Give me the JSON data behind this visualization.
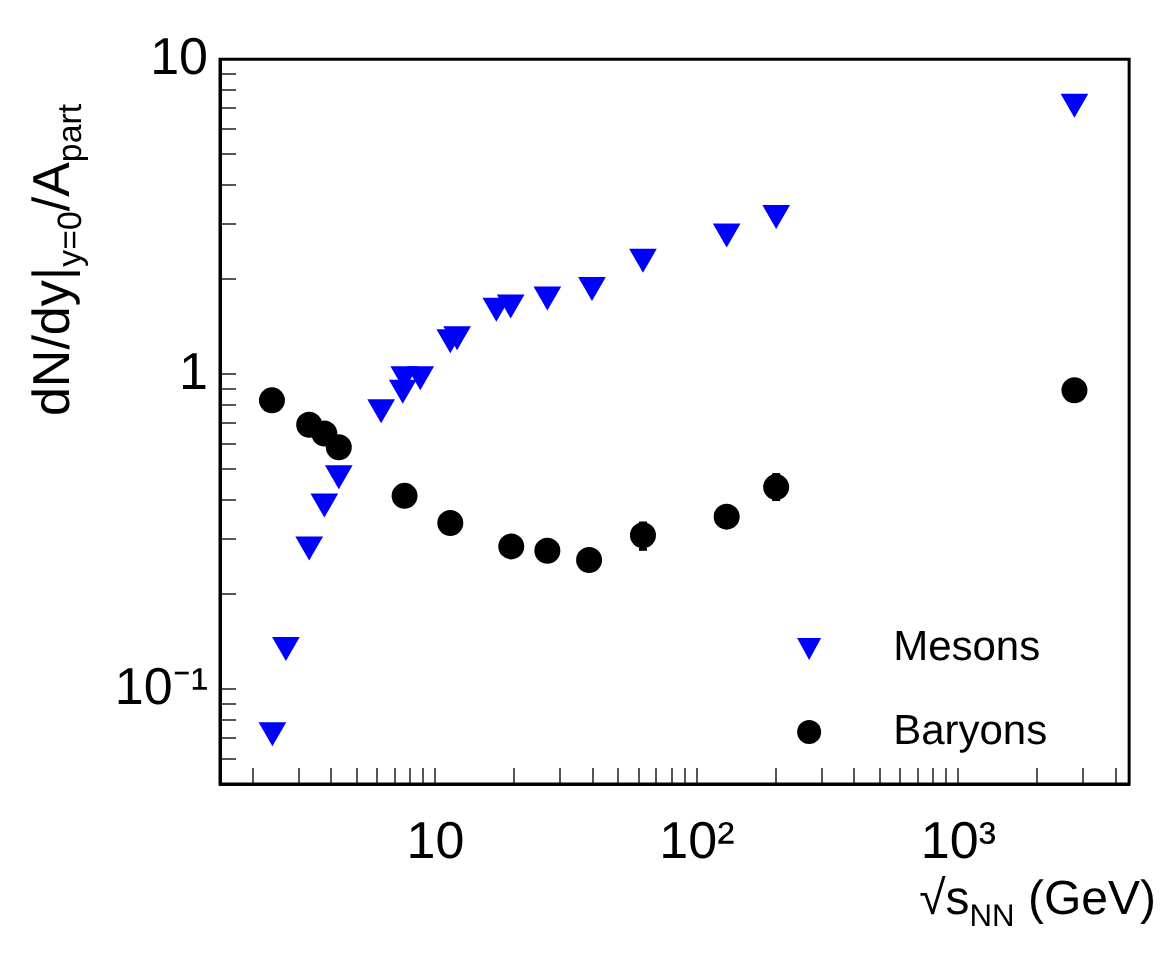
{
  "chart_data": {
    "type": "scatter",
    "xlabel": "√s$_{NN}$ (GeV)",
    "ylabel": "dN/dy|$_{y=0}$/A$_{part}$",
    "log": "xy",
    "legend": "bottom right",
    "grid": false,
    "xlim": [
      1.5,
      4500
    ],
    "ylim": [
      0.05,
      10
    ],
    "xticks": [
      {
        "value": 2,
        "label": null
      },
      {
        "value": 3,
        "label": null
      },
      {
        "value": 4,
        "label": null
      },
      {
        "value": 5,
        "label": null
      },
      {
        "value": 6,
        "label": null
      },
      {
        "value": 7,
        "label": null
      },
      {
        "value": 8,
        "label": null
      },
      {
        "value": 9,
        "label": null
      },
      10,
      {
        "value": 20,
        "label": null
      },
      {
        "value": 30,
        "label": null
      },
      {
        "value": 40,
        "label": null
      },
      {
        "value": 50,
        "label": null
      },
      {
        "value": 60,
        "label": null
      },
      {
        "value": 70,
        "label": null
      },
      {
        "value": 80,
        "label": null
      },
      {
        "value": 90,
        "label": null
      },
      {
        "value": 100,
        "label": "10²"
      },
      {
        "value": 200,
        "label": null
      },
      {
        "value": 300,
        "label": null
      },
      {
        "value": 400,
        "label": null
      },
      {
        "value": 500,
        "label": null
      },
      {
        "value": 600,
        "label": null
      },
      {
        "value": 700,
        "label": null
      },
      {
        "value": 800,
        "label": null
      },
      {
        "value": 900,
        "label": null
      },
      {
        "value": 1000,
        "label": "10³"
      },
      {
        "value": 2000,
        "label": null
      },
      {
        "value": 3000,
        "label": null
      },
      {
        "value": 4000,
        "label": null
      }
    ],
    "yticks": [
      {
        "value": 0.06,
        "label": null
      },
      {
        "value": 0.07,
        "label": null
      },
      {
        "value": 0.08,
        "label": null
      },
      {
        "value": 0.09,
        "label": null
      },
      {
        "value": 0.1,
        "label": "10⁻¹"
      },
      {
        "value": 0.2,
        "label": null
      },
      {
        "value": 0.3,
        "label": null
      },
      {
        "value": 0.4,
        "label": null
      },
      {
        "value": 0.5,
        "label": null
      },
      {
        "value": 0.6,
        "label": null
      },
      {
        "value": 0.7,
        "label": null
      },
      {
        "value": 0.8,
        "label": null
      },
      {
        "value": 0.9,
        "label": null
      },
      1,
      {
        "value": 2,
        "label": null
      },
      {
        "value": 3,
        "label": null
      },
      {
        "value": 4,
        "label": null
      },
      {
        "value": 5,
        "label": null
      },
      {
        "value": 6,
        "label": null
      },
      {
        "value": 7,
        "label": null
      },
      {
        "value": 8,
        "label": null
      },
      {
        "value": 9,
        "label": null
      },
      10
    ],
    "series": [
      {
        "name": "Mesons",
        "color": "#0000ff",
        "marker": "triangle",
        "x": [
          2.38,
          2.68,
          3.29,
          3.76,
          4.27,
          6.2,
          7.5,
          7.6,
          8.75,
          11.4,
          12.1,
          17.1,
          19.4,
          26.8,
          39.7,
          62.2,
          130,
          201,
          2780
        ],
        "values": [
          0.074,
          0.138,
          0.288,
          0.394,
          0.485,
          0.786,
          0.906,
          1.0,
          1.0,
          1.31,
          1.34,
          1.65,
          1.69,
          1.79,
          1.92,
          2.36,
          2.84,
          3.25,
          7.33
        ]
      },
      {
        "name": "Baryons",
        "color": "#000000",
        "marker": "circle",
        "x": [
          2.37,
          3.29,
          3.76,
          4.27,
          7.62,
          11.4,
          19.5,
          26.8,
          38.7,
          62.2,
          130,
          201,
          2780
        ],
        "values": [
          0.826,
          0.691,
          0.648,
          0.586,
          0.411,
          0.337,
          0.284,
          0.275,
          0.257,
          0.308,
          0.353,
          0.438,
          0.889
        ],
        "errors": [
          null,
          null,
          null,
          null,
          null,
          null,
          null,
          null,
          null,
          [
            0.278,
            0.337
          ],
          [
            0.33,
            0.37
          ],
          [
            0.4,
            0.48
          ],
          null
        ]
      }
    ]
  }
}
